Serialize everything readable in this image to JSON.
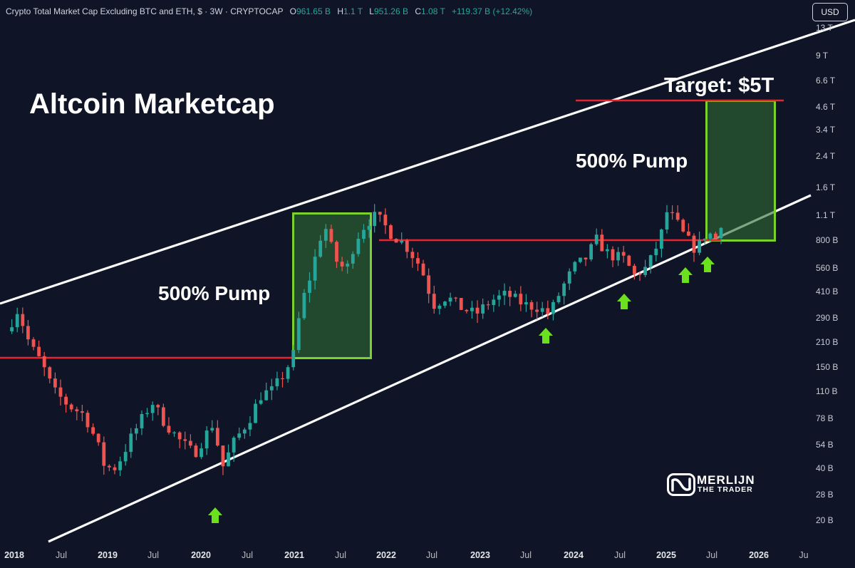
{
  "header": {
    "symbol": "Crypto Total Market Cap Excluding BTC and ETH, $ · 3W · CRYPTOCAP",
    "o_label": "O",
    "o_value": "961.65 B",
    "h_label": "H",
    "h_value": "1.1 T",
    "l_label": "L",
    "l_value": "951.26 B",
    "c_label": "C",
    "c_value": "1.08 T",
    "change": "+119.37 B (+12.42%)"
  },
  "currency_button": "USD",
  "colors": {
    "background": "#0f1526",
    "up_candle": "#26a69a",
    "down_candle": "#ef5350",
    "resistance_line": "#e5252f",
    "pump_box_border": "#7cd22c",
    "pump_box_fill": "#2f6b33",
    "arrow": "#6be01f",
    "channel_line": "#ffffff"
  },
  "chart_data": {
    "type": "candlestick",
    "title": "Altcoin Marketcap",
    "y_scale": "log",
    "y_ticks": [
      "13 T",
      "9 T",
      "6.6 T",
      "4.6 T",
      "3.4 T",
      "2.4 T",
      "1.6 T",
      "1.1 T",
      "800 B",
      "560 B",
      "410 B",
      "290 B",
      "210 B",
      "150 B",
      "110 B",
      "78 B",
      "54 B",
      "40 B",
      "28 B",
      "20 B"
    ],
    "x_ticks": [
      "2018",
      "Jul",
      "2019",
      "Jul",
      "2020",
      "Jul",
      "2021",
      "Jul",
      "2022",
      "Jul",
      "2023",
      "Jul",
      "2024",
      "Jul",
      "2025",
      "Jul",
      "2026",
      "Ju"
    ],
    "close_path_billions": [
      [
        "2017-12-01",
        240
      ],
      [
        "2018-01-15",
        320
      ],
      [
        "2018-03-01",
        200
      ],
      [
        "2018-04-15",
        160
      ],
      [
        "2018-06-01",
        110
      ],
      [
        "2018-08-01",
        90
      ],
      [
        "2018-10-01",
        80
      ],
      [
        "2018-11-20",
        55
      ],
      [
        "2018-12-20",
        40
      ],
      [
        "2019-02-01",
        40
      ],
      [
        "2019-04-01",
        60
      ],
      [
        "2019-06-20",
        95
      ],
      [
        "2019-08-01",
        75
      ],
      [
        "2019-10-01",
        58
      ],
      [
        "2019-12-01",
        48
      ],
      [
        "2020-02-15",
        72
      ],
      [
        "2020-03-20",
        40
      ],
      [
        "2020-05-01",
        55
      ],
      [
        "2020-07-01",
        75
      ],
      [
        "2020-08-20",
        105
      ],
      [
        "2020-10-01",
        110
      ],
      [
        "2020-11-20",
        140
      ],
      [
        "2020-12-25",
        180
      ],
      [
        "2021-01-20",
        330
      ],
      [
        "2021-03-01",
        520
      ],
      [
        "2021-04-20",
        1000
      ],
      [
        "2021-06-01",
        620
      ],
      [
        "2021-07-15",
        530
      ],
      [
        "2021-08-20",
        800
      ],
      [
        "2021-10-01",
        1000
      ],
      [
        "2021-11-10",
        1100
      ],
      [
        "2022-01-10",
        860
      ],
      [
        "2022-03-01",
        750
      ],
      [
        "2022-05-01",
        560
      ],
      [
        "2022-06-20",
        340
      ],
      [
        "2022-08-10",
        380
      ],
      [
        "2022-10-01",
        330
      ],
      [
        "2022-12-01",
        300
      ],
      [
        "2023-02-01",
        360
      ],
      [
        "2023-04-01",
        390
      ],
      [
        "2023-06-10",
        340
      ],
      [
        "2023-08-01",
        330
      ],
      [
        "2023-09-15",
        300
      ],
      [
        "2023-11-01",
        420
      ],
      [
        "2023-12-20",
        560
      ],
      [
        "2024-02-01",
        620
      ],
      [
        "2024-03-15",
        800
      ],
      [
        "2024-05-01",
        660
      ],
      [
        "2024-07-01",
        620
      ],
      [
        "2024-08-10",
        500
      ],
      [
        "2024-10-01",
        560
      ],
      [
        "2024-11-20",
        820
      ],
      [
        "2024-12-15",
        1150
      ],
      [
        "2025-01-15",
        1050
      ],
      [
        "2025-02-20",
        850
      ],
      [
        "2025-04-07",
        700
      ],
      [
        "2025-05-20",
        900
      ],
      [
        "2025-06-20",
        800
      ],
      [
        "2025-07-20",
        1080
      ]
    ]
  },
  "labels": {
    "pump_left": "500% Pump",
    "pump_right": "500% Pump",
    "target": "Target: $5T"
  },
  "logo": {
    "line1": "MERLIJN",
    "line2": "THE TRADER"
  }
}
